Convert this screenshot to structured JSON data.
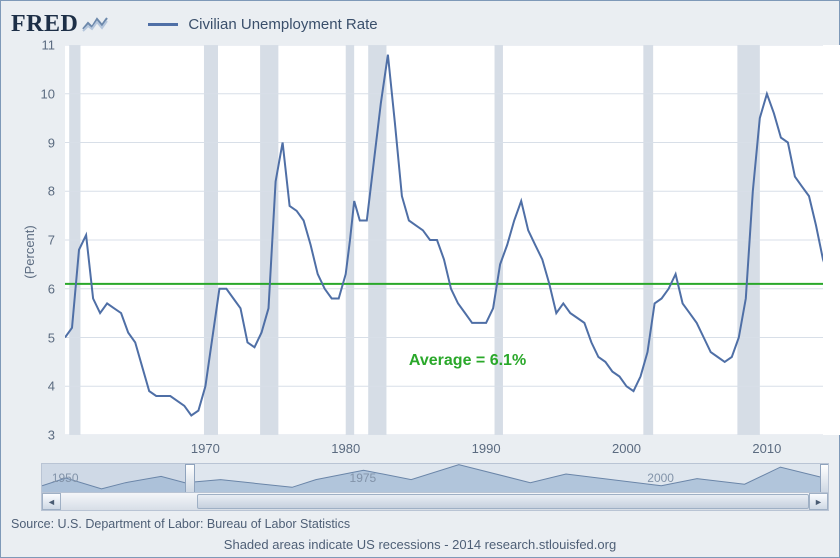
{
  "logo_text": "FRED",
  "legend": {
    "label": "Civilian Unemployment Rate",
    "color": "#4f6fa6"
  },
  "ylabel": "(Percent)",
  "chart": {
    "type": "line",
    "x_start_year": 1960,
    "x_end_year": 2014,
    "ylim": [
      3,
      11
    ],
    "ytick_step": 1,
    "xtick_years": [
      1970,
      1980,
      1990,
      2000,
      2010
    ],
    "grid_color": "#d8dfe8",
    "background_color": "#ffffff",
    "line_color": "#4f6fa6",
    "line_width": 2,
    "recession_color": "#d6dde6",
    "recessions": [
      [
        1960.3,
        1961.1
      ],
      [
        1969.9,
        1970.9
      ],
      [
        1973.9,
        1975.2
      ],
      [
        1980.0,
        1980.6
      ],
      [
        1981.6,
        1982.9
      ],
      [
        1990.6,
        1991.2
      ],
      [
        2001.2,
        2001.9
      ],
      [
        2007.9,
        2009.5
      ]
    ],
    "reference_line": {
      "value": 6.1,
      "color": "#2aa82a",
      "width": 2
    },
    "annotation": {
      "text": "Average = 6.1%",
      "color": "#2aa82a",
      "x_year": 1984.5,
      "y_val": 4.5,
      "fontsize": 16
    },
    "series": [
      [
        1960.0,
        5.0
      ],
      [
        1960.5,
        5.2
      ],
      [
        1961.0,
        6.8
      ],
      [
        1961.5,
        7.1
      ],
      [
        1962.0,
        5.8
      ],
      [
        1962.5,
        5.5
      ],
      [
        1963.0,
        5.7
      ],
      [
        1963.5,
        5.6
      ],
      [
        1964.0,
        5.5
      ],
      [
        1964.5,
        5.1
      ],
      [
        1965.0,
        4.9
      ],
      [
        1965.5,
        4.4
      ],
      [
        1966.0,
        3.9
      ],
      [
        1966.5,
        3.8
      ],
      [
        1967.0,
        3.8
      ],
      [
        1967.5,
        3.8
      ],
      [
        1968.0,
        3.7
      ],
      [
        1968.5,
        3.6
      ],
      [
        1969.0,
        3.4
      ],
      [
        1969.5,
        3.5
      ],
      [
        1970.0,
        4.0
      ],
      [
        1970.5,
        5.0
      ],
      [
        1971.0,
        6.0
      ],
      [
        1971.5,
        6.0
      ],
      [
        1972.0,
        5.8
      ],
      [
        1972.5,
        5.6
      ],
      [
        1973.0,
        4.9
      ],
      [
        1973.5,
        4.8
      ],
      [
        1974.0,
        5.1
      ],
      [
        1974.5,
        5.6
      ],
      [
        1975.0,
        8.2
      ],
      [
        1975.5,
        9.0
      ],
      [
        1976.0,
        7.7
      ],
      [
        1976.5,
        7.6
      ],
      [
        1977.0,
        7.4
      ],
      [
        1977.5,
        6.9
      ],
      [
        1978.0,
        6.3
      ],
      [
        1978.5,
        6.0
      ],
      [
        1979.0,
        5.8
      ],
      [
        1979.5,
        5.8
      ],
      [
        1980.0,
        6.3
      ],
      [
        1980.3,
        7.0
      ],
      [
        1980.6,
        7.8
      ],
      [
        1981.0,
        7.4
      ],
      [
        1981.5,
        7.4
      ],
      [
        1982.0,
        8.6
      ],
      [
        1982.5,
        9.8
      ],
      [
        1983.0,
        10.8
      ],
      [
        1983.5,
        9.4
      ],
      [
        1984.0,
        7.9
      ],
      [
        1984.5,
        7.4
      ],
      [
        1985.0,
        7.3
      ],
      [
        1985.5,
        7.2
      ],
      [
        1986.0,
        7.0
      ],
      [
        1986.5,
        7.0
      ],
      [
        1987.0,
        6.6
      ],
      [
        1987.5,
        6.0
      ],
      [
        1988.0,
        5.7
      ],
      [
        1988.5,
        5.5
      ],
      [
        1989.0,
        5.3
      ],
      [
        1989.5,
        5.3
      ],
      [
        1990.0,
        5.3
      ],
      [
        1990.5,
        5.6
      ],
      [
        1991.0,
        6.5
      ],
      [
        1991.5,
        6.9
      ],
      [
        1992.0,
        7.4
      ],
      [
        1992.5,
        7.8
      ],
      [
        1993.0,
        7.2
      ],
      [
        1993.5,
        6.9
      ],
      [
        1994.0,
        6.6
      ],
      [
        1994.5,
        6.1
      ],
      [
        1995.0,
        5.5
      ],
      [
        1995.5,
        5.7
      ],
      [
        1996.0,
        5.5
      ],
      [
        1996.5,
        5.4
      ],
      [
        1997.0,
        5.3
      ],
      [
        1997.5,
        4.9
      ],
      [
        1998.0,
        4.6
      ],
      [
        1998.5,
        4.5
      ],
      [
        1999.0,
        4.3
      ],
      [
        1999.5,
        4.2
      ],
      [
        2000.0,
        4.0
      ],
      [
        2000.5,
        3.9
      ],
      [
        2001.0,
        4.2
      ],
      [
        2001.5,
        4.7
      ],
      [
        2002.0,
        5.7
      ],
      [
        2002.5,
        5.8
      ],
      [
        2003.0,
        6.0
      ],
      [
        2003.5,
        6.3
      ],
      [
        2004.0,
        5.7
      ],
      [
        2004.5,
        5.5
      ],
      [
        2005.0,
        5.3
      ],
      [
        2005.5,
        5.0
      ],
      [
        2006.0,
        4.7
      ],
      [
        2006.5,
        4.6
      ],
      [
        2007.0,
        4.5
      ],
      [
        2007.5,
        4.6
      ],
      [
        2008.0,
        5.0
      ],
      [
        2008.5,
        5.8
      ],
      [
        2009.0,
        8.0
      ],
      [
        2009.5,
        9.5
      ],
      [
        2010.0,
        10.0
      ],
      [
        2010.5,
        9.6
      ],
      [
        2011.0,
        9.1
      ],
      [
        2011.5,
        9.0
      ],
      [
        2012.0,
        8.3
      ],
      [
        2012.5,
        8.1
      ],
      [
        2013.0,
        7.9
      ],
      [
        2013.5,
        7.3
      ],
      [
        2014.0,
        6.6
      ],
      [
        2014.5,
        6.2
      ]
    ]
  },
  "navigator": {
    "full_start": 1948,
    "full_end": 2014,
    "visible_start": 1960,
    "visible_end": 2014,
    "years": [
      1950,
      1975,
      2000
    ],
    "area_color": "#9db6d3",
    "shade_color": "#cfd9e6",
    "profile": [
      [
        1948,
        4
      ],
      [
        1950,
        6.5
      ],
      [
        1953,
        3
      ],
      [
        1955,
        5
      ],
      [
        1958,
        7
      ],
      [
        1960,
        5
      ],
      [
        1963,
        6
      ],
      [
        1969,
        3.5
      ],
      [
        1971,
        6
      ],
      [
        1975,
        9
      ],
      [
        1979,
        6
      ],
      [
        1983,
        10.8
      ],
      [
        1989,
        5
      ],
      [
        1992,
        7.8
      ],
      [
        2000,
        4
      ],
      [
        2003,
        6.3
      ],
      [
        2007,
        4.5
      ],
      [
        2010,
        10
      ],
      [
        2014,
        6.2
      ]
    ]
  },
  "source_text": "Source: U.S. Department of Labor: Bureau of Labor Statistics",
  "footer_text": "Shaded areas indicate US recessions - 2014 research.stlouisfed.org"
}
